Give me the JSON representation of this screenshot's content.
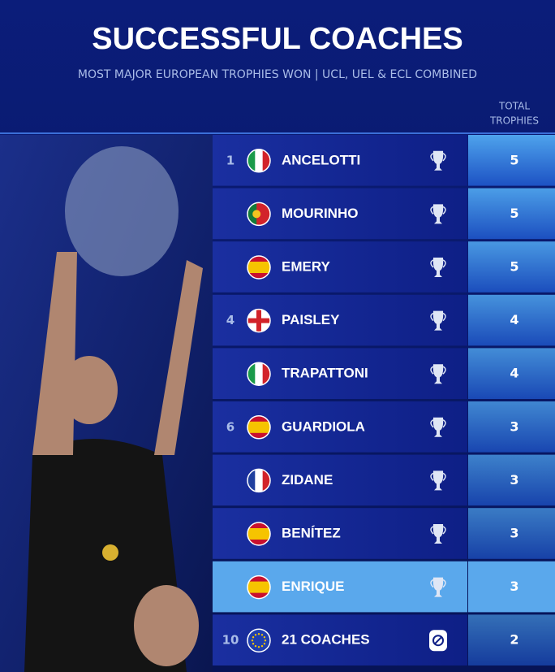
{
  "header": {
    "title": "SUCCESSFUL COACHES",
    "subtitle": "MOST MAJOR EUROPEAN TROPHIES WON | UCL, UEL & ECL COMBINED"
  },
  "table": {
    "column_header": [
      "TOTAL",
      "TROPHIES"
    ],
    "rows": [
      {
        "rank": "1",
        "name": "ANCELOTTI",
        "total": 5
      },
      {
        "rank": null,
        "name": "MOURINHO",
        "total": 5
      },
      {
        "rank": null,
        "name": "EMERY",
        "total": 5
      },
      {
        "rank": "4",
        "name": "PAISLEY",
        "total": 4
      },
      {
        "rank": null,
        "name": "TRAPATTONI",
        "total": 4
      },
      {
        "rank": "6",
        "name": "GUARDIOLA",
        "total": 3
      },
      {
        "rank": null,
        "name": "ZIDANE",
        "total": 3
      },
      {
        "rank": null,
        "name": "BENÍTEZ",
        "total": 3
      },
      {
        "rank": null,
        "name": "ENRIQUE",
        "total": 3
      },
      {
        "rank": "10",
        "name": "21 COACHES",
        "total": 2
      }
    ]
  }
}
